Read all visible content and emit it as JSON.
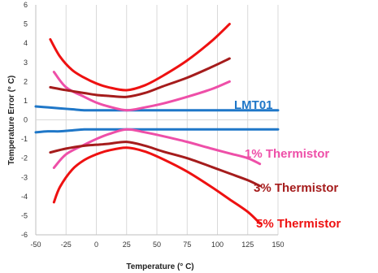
{
  "chart_data": {
    "type": "line",
    "xlabel": "Temperature (° C)",
    "ylabel": "Temperature Error (° C)",
    "xlim": [
      -50,
      150
    ],
    "ylim": [
      -6,
      6
    ],
    "x_ticks": [
      "-50",
      "-25",
      "0",
      "25",
      "50",
      "75",
      "100",
      "125",
      "150"
    ],
    "y_ticks": [
      "6",
      "5",
      "4",
      "3",
      "2",
      "1",
      "0",
      "-1",
      "-2",
      "-3",
      "-4",
      "-5",
      "-6"
    ],
    "grid": "vertical",
    "series": [
      {
        "name": "LMT01",
        "color": "#1f77c8",
        "upper": {
          "x": [
            -50,
            -40,
            -30,
            -20,
            -10,
            0,
            25,
            50,
            75,
            100,
            125,
            150
          ],
          "y": [
            0.7,
            0.65,
            0.6,
            0.55,
            0.5,
            0.5,
            0.5,
            0.5,
            0.5,
            0.5,
            0.5,
            0.5
          ]
        },
        "lower": {
          "x": [
            -50,
            -40,
            -30,
            -20,
            -10,
            0,
            25,
            50,
            75,
            100,
            125,
            150
          ],
          "y": [
            -0.65,
            -0.6,
            -0.6,
            -0.55,
            -0.5,
            -0.5,
            -0.5,
            -0.5,
            -0.5,
            -0.5,
            -0.5,
            -0.5
          ]
        }
      },
      {
        "name": "1% Thermistor",
        "color": "#ee4fa8",
        "upper": {
          "x": [
            -35,
            -25,
            -10,
            0,
            10,
            25,
            40,
            55,
            75,
            95,
            110
          ],
          "y": [
            2.5,
            1.7,
            1.2,
            0.9,
            0.7,
            0.5,
            0.65,
            0.85,
            1.2,
            1.6,
            2.0
          ]
        },
        "lower": {
          "x": [
            -35,
            -25,
            -10,
            0,
            10,
            25,
            40,
            55,
            75,
            95,
            110,
            125,
            135
          ],
          "y": [
            -2.5,
            -1.8,
            -1.3,
            -1.0,
            -0.75,
            -0.5,
            -0.65,
            -0.85,
            -1.15,
            -1.5,
            -1.75,
            -2.0,
            -2.3
          ]
        }
      },
      {
        "name": "3% Thermistor",
        "color": "#a51c1c",
        "upper": {
          "x": [
            -38,
            -25,
            -10,
            0,
            10,
            25,
            40,
            55,
            75,
            95,
            110
          ],
          "y": [
            1.7,
            1.55,
            1.4,
            1.3,
            1.25,
            1.2,
            1.4,
            1.75,
            2.2,
            2.75,
            3.2
          ]
        },
        "lower": {
          "x": [
            -38,
            -25,
            -10,
            0,
            10,
            25,
            40,
            55,
            75,
            95,
            110,
            125,
            135
          ],
          "y": [
            -1.7,
            -1.5,
            -1.35,
            -1.3,
            -1.25,
            -1.15,
            -1.35,
            -1.65,
            -2.0,
            -2.45,
            -2.8,
            -3.15,
            -3.45
          ]
        }
      },
      {
        "name": "5% Thermistor",
        "color": "#ee1111",
        "upper": {
          "x": [
            -38,
            -30,
            -20,
            -10,
            0,
            10,
            25,
            40,
            55,
            75,
            95,
            110
          ],
          "y": [
            4.2,
            3.3,
            2.6,
            2.2,
            1.9,
            1.7,
            1.55,
            1.8,
            2.3,
            3.1,
            4.1,
            5.0
          ]
        },
        "lower": {
          "x": [
            -35,
            -30,
            -20,
            -10,
            0,
            10,
            25,
            40,
            55,
            75,
            95,
            110,
            125,
            135
          ],
          "y": [
            -4.3,
            -3.5,
            -2.6,
            -2.1,
            -1.8,
            -1.6,
            -1.45,
            -1.65,
            -2.05,
            -2.7,
            -3.5,
            -4.15,
            -4.8,
            -5.4
          ]
        }
      }
    ]
  },
  "labels": {
    "lmt01": "LMT01",
    "th1": "1% Thermistor",
    "th3": "3% Thermistor",
    "th5": "5% Thermistor"
  }
}
